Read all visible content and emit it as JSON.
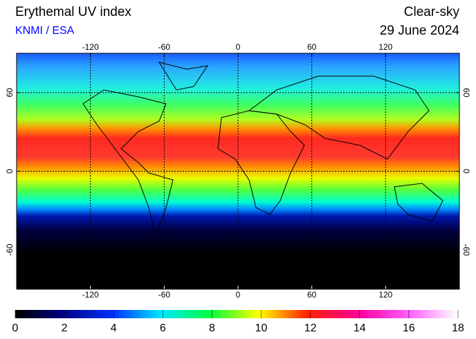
{
  "header": {
    "title": "Erythemal UV index",
    "source": "KNMI / ESA",
    "condition": "Clear-sky",
    "date": "29 June 2024"
  },
  "map": {
    "xlim": [
      -180,
      180
    ],
    "ylim": [
      -90,
      90
    ],
    "xticks": [
      -120,
      -60,
      0,
      60,
      120
    ],
    "yticks": [
      -60,
      0,
      60
    ],
    "grid": true
  },
  "colorbar": {
    "lim": [
      0,
      18
    ],
    "ticks": [
      0,
      2,
      4,
      6,
      8,
      10,
      12,
      14,
      16,
      18
    ]
  }
}
